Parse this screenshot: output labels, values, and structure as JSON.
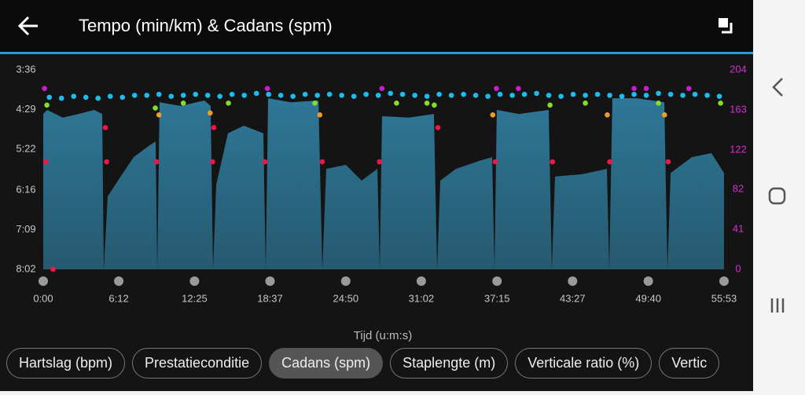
{
  "header": {
    "title": "Tempo (min/km) & Cadans (spm)"
  },
  "chart_data": {
    "type": "combo",
    "x_label": "Tijd (u:m:s)",
    "xlim": [
      0,
      55.883
    ],
    "xticks": [
      {
        "value": 0,
        "label": "0:00"
      },
      {
        "value": 6.2,
        "label": "6:12"
      },
      {
        "value": 12.417,
        "label": "12:25"
      },
      {
        "value": 18.617,
        "label": "18:37"
      },
      {
        "value": 24.833,
        "label": "24:50"
      },
      {
        "value": 31.033,
        "label": "31:02"
      },
      {
        "value": 37.25,
        "label": "37:15"
      },
      {
        "value": 43.45,
        "label": "43:27"
      },
      {
        "value": 49.667,
        "label": "49:40"
      },
      {
        "value": 55.883,
        "label": "55:53"
      }
    ],
    "ylim": [
      8.033,
      3.6
    ],
    "yticks": [
      {
        "value": 3.6,
        "label": "3:36"
      },
      {
        "value": 4.483,
        "label": "4:29"
      },
      {
        "value": 5.367,
        "label": "5:22"
      },
      {
        "value": 6.267,
        "label": "6:16"
      },
      {
        "value": 7.15,
        "label": "7:09"
      },
      {
        "value": 8.033,
        "label": "8:02"
      }
    ],
    "y2lim": [
      0,
      204
    ],
    "y2ticks": [
      204,
      163,
      122,
      82,
      41,
      0
    ],
    "ytick_color": "#c8c8c8",
    "y2tick_color": "#d22fd2",
    "series": [
      {
        "type": "area",
        "color": "#2e7797",
        "x": [
          0.0,
          0.32,
          1.61,
          2.9,
          4.19,
          4.84,
          4.97,
          5.29,
          6.13,
          7.42,
          8.71,
          9.23,
          9.36,
          9.55,
          11.29,
          13.23,
          13.74,
          13.94,
          14.2,
          15.16,
          16.46,
          18.07,
          18.26,
          18.46,
          20.33,
          22.59,
          22.91,
          23.23,
          24.84,
          26.13,
          27.43,
          27.62,
          27.81,
          30.01,
          32.07,
          32.33,
          32.59,
          33.88,
          35.81,
          36.85,
          37.04,
          37.23,
          39.04,
          41.49,
          41.75,
          42.01,
          44.2,
          46.27,
          46.46,
          46.72,
          48.72,
          50.98,
          51.24,
          51.5,
          53.24,
          54.85,
          55.88
        ],
        "values": [
          4.58,
          4.49,
          4.66,
          4.58,
          4.49,
          4.58,
          8.03,
          6.41,
          6.06,
          5.54,
          5.28,
          5.19,
          8.03,
          4.32,
          4.4,
          4.28,
          4.4,
          8.03,
          6.15,
          5.01,
          4.84,
          5.01,
          8.03,
          4.23,
          4.32,
          4.28,
          8.03,
          5.8,
          5.71,
          6.06,
          5.8,
          8.03,
          4.63,
          4.66,
          4.58,
          8.03,
          6.06,
          5.8,
          5.62,
          5.54,
          8.03,
          4.49,
          4.58,
          4.49,
          8.03,
          5.97,
          5.92,
          5.8,
          8.03,
          4.23,
          4.23,
          4.32,
          8.03,
          5.89,
          5.54,
          5.45,
          5.89
        ]
      },
      {
        "type": "scatter",
        "axis": "y2",
        "color_zones": [
          {
            "min": 0,
            "color": "#ee1848"
          },
          {
            "min": 153,
            "color": "#f79a1e"
          },
          {
            "min": 164,
            "color": "#86dc2a"
          },
          {
            "min": 174,
            "color": "#1ebbec"
          },
          {
            "min": 184,
            "color": "#c81ed0"
          }
        ],
        "x": [
          0.5,
          1.5,
          2.5,
          3.5,
          4.5,
          5.5,
          6.5,
          7.5,
          8.5,
          9.5,
          10.5,
          11.5,
          12.5,
          13.5,
          14.5,
          15.5,
          16.5,
          17.5,
          18.5,
          19.5,
          20.5,
          21.5,
          22.5,
          23.5,
          24.5,
          25.5,
          26.5,
          27.5,
          28.5,
          29.5,
          30.5,
          31.5,
          32.5,
          33.5,
          34.5,
          35.5,
          36.5,
          37.5,
          38.5,
          39.5,
          40.5,
          41.5,
          42.5,
          43.5,
          44.5,
          45.5,
          46.5,
          47.5,
          48.5,
          49.5,
          50.5,
          51.5,
          52.5,
          53.5,
          54.5,
          55.5,
          0.1,
          0.3,
          0.2,
          0.8,
          5.1,
          5.2,
          9.2,
          9.3,
          9.5,
          11.5,
          13.7,
          13.9,
          14.0,
          15.2,
          18.2,
          18.4,
          22.3,
          22.7,
          22.9,
          27.6,
          27.8,
          29.0,
          31.5,
          32.1,
          32.4,
          36.9,
          37.1,
          37.2,
          39.0,
          41.6,
          41.8,
          44.5,
          46.3,
          46.5,
          48.5,
          49.5,
          50.5,
          51.0,
          51.3,
          53.0,
          55.6
        ],
        "values": [
          176,
          175,
          177,
          176,
          175,
          177,
          176,
          178,
          178,
          179,
          177,
          178,
          179,
          178,
          177,
          179,
          178,
          180,
          179,
          178,
          177,
          179,
          178,
          179,
          178,
          177,
          179,
          178,
          180,
          179,
          178,
          177,
          179,
          178,
          179,
          178,
          177,
          179,
          178,
          179,
          180,
          178,
          177,
          179,
          178,
          179,
          178,
          177,
          179,
          178,
          180,
          179,
          178,
          179,
          178,
          177,
          185,
          168,
          110,
          0,
          145,
          110,
          165,
          110,
          158,
          170,
          160,
          110,
          145,
          170,
          110,
          185,
          170,
          158,
          110,
          110,
          185,
          170,
          170,
          168,
          145,
          158,
          110,
          185,
          185,
          168,
          110,
          170,
          158,
          110,
          185,
          185,
          170,
          158,
          110,
          185,
          170
        ]
      }
    ]
  },
  "chips": [
    {
      "label": "Hartslag (bpm)",
      "selected": false
    },
    {
      "label": "Prestatieconditie",
      "selected": false
    },
    {
      "label": "Cadans (spm)",
      "selected": true
    },
    {
      "label": "Staplengte (m)",
      "selected": false
    },
    {
      "label": "Verticale ratio (%)",
      "selected": false
    },
    {
      "label": "Vertic",
      "selected": false
    }
  ]
}
